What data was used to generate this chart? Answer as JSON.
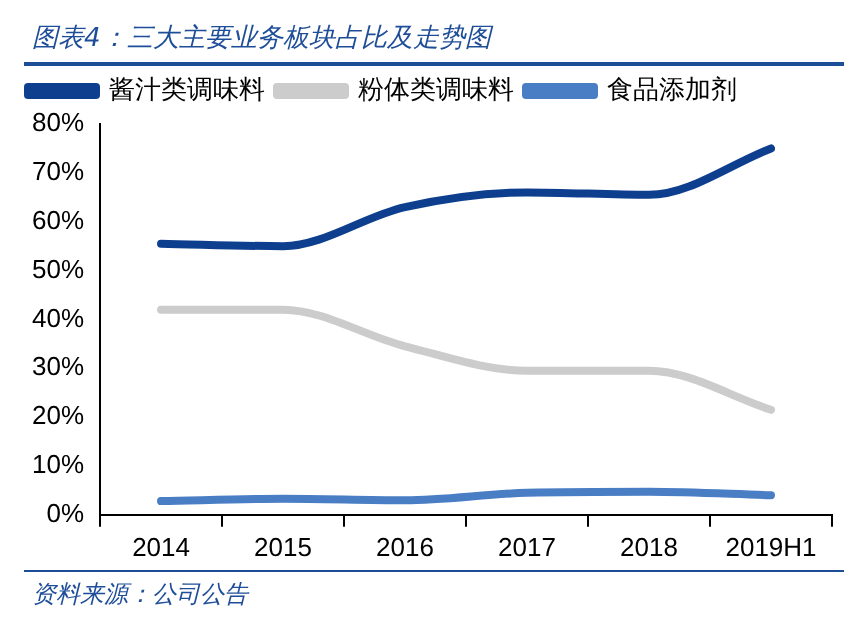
{
  "chart_data": {
    "type": "line",
    "title": "图表4：三大主要业务板块占比及走势图",
    "annotations": [
      "资料来源：公司公告"
    ],
    "categories": [
      "2014",
      "2015",
      "2016",
      "2017",
      "2018",
      "2019H1"
    ],
    "series": [
      {
        "name": "酱汁类调味料",
        "color": "#0e3f8f",
        "values": [
          55.5,
          55,
          63,
          66,
          65.5,
          75
        ]
      },
      {
        "name": "粉体类调味料",
        "color": "#cccccc",
        "values": [
          42,
          42,
          34.5,
          29.5,
          29.5,
          21.5
        ]
      },
      {
        "name": "食品添加剂",
        "color": "#4a7ec4",
        "values": [
          2.8,
          3.3,
          3,
          4.5,
          4.7,
          4
        ]
      }
    ],
    "ylim": [
      0,
      80
    ],
    "yticks": [
      {
        "value": 0,
        "label": "0%"
      },
      {
        "value": 10,
        "label": "10%"
      },
      {
        "value": 20,
        "label": "20%"
      },
      {
        "value": 30,
        "label": "30%"
      },
      {
        "value": 40,
        "label": "40%"
      },
      {
        "value": 50,
        "label": "50%"
      },
      {
        "value": 60,
        "label": "60%"
      },
      {
        "value": 70,
        "label": "70%"
      },
      {
        "value": 80,
        "label": "80%"
      }
    ],
    "grid": false,
    "legend": "top",
    "marker": "none",
    "line_style": "solid"
  }
}
